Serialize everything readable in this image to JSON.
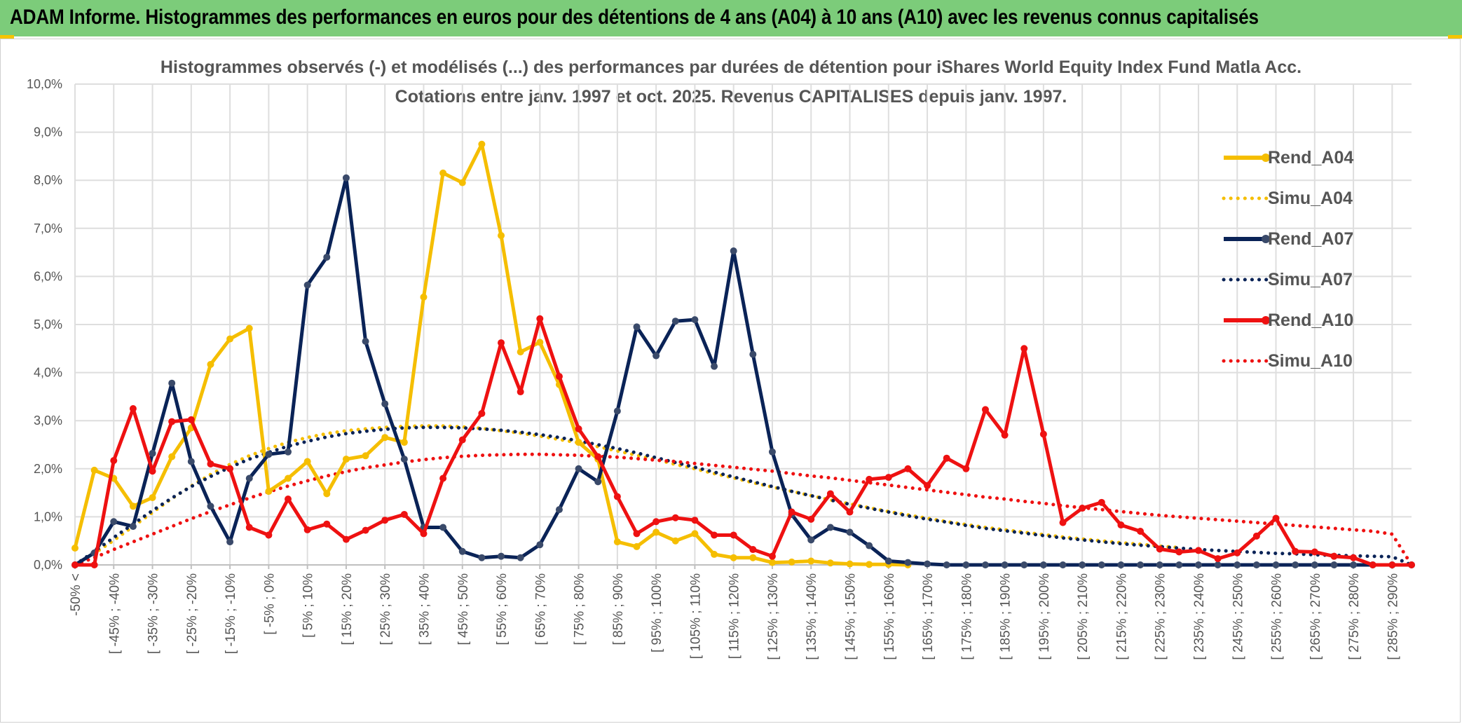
{
  "header": {
    "title": "ADAM Informe. Histogrammes des performances en euros pour des détentions de 4 ans (A04) à 10 ans (A10) avec les revenus connus capitalisés"
  },
  "chart_data": {
    "type": "line",
    "title": "Histogrammes observés (-) et modélisés (...) des performances par durées de détention pour iShares World Equity Index Fund Matla Acc.",
    "subtitle": "Cotations entre janv. 1997 et oct. 2025. Revenus CAPITALISES depuis janv. 1997.",
    "xlabel": "",
    "ylabel": "",
    "ylim": [
      0,
      10
    ],
    "y_unit": "%",
    "y_ticks": [
      "0,0%",
      "1,0%",
      "2,0%",
      "3,0%",
      "4,0%",
      "5,0%",
      "6,0%",
      "7,0%",
      "8,0%",
      "9,0%",
      "10,0%"
    ],
    "grid": true,
    "legend_position": "top-right",
    "x_tick_labels": [
      "-50% <",
      "[ -45% ; -40%",
      "[ -35% ; -30%",
      "[ -25% ; -20%",
      "[ -15% ; -10%",
      "[ -5% ; 0%",
      "[ 5% ; 10%",
      "[ 15% ; 20%",
      "[ 25% ; 30%",
      "[ 35% ; 40%",
      "[ 45% ; 50%",
      "[ 55% ; 60%",
      "[ 65% ; 70%",
      "[ 75% ; 80%",
      "[ 85% ; 90%",
      "[ 95% ; 100%",
      "[ 105% ; 110%",
      "[ 115% ; 120%",
      "[ 125% ; 130%",
      "[ 135% ; 140%",
      "[ 145% ; 150%",
      "[ 155% ; 160%",
      "[ 165% ; 170%",
      "[ 175% ; 180%",
      "[ 185% ; 190%",
      "[ 195% ; 200%",
      "[ 205% ; 210%",
      "[ 215% ; 220%",
      "[ 225% ; 230%",
      "[ 235% ; 240%",
      "[ 245% ; 250%",
      "[ 255% ; 260%",
      "[ 265% ; 270%",
      "[ 275% ; 280%",
      "[ 285% ; 290%"
    ],
    "categories_count": 70,
    "series": [
      {
        "name": "Rend_A04",
        "color": "#F5BE00",
        "style": "solid",
        "markers": true,
        "values": [
          0.35,
          1.97,
          1.8,
          1.22,
          1.4,
          2.25,
          2.85,
          4.17,
          4.7,
          4.92,
          1.53,
          1.8,
          2.15,
          1.48,
          2.2,
          2.27,
          2.65,
          2.55,
          5.57,
          8.15,
          7.95,
          8.75,
          6.85,
          4.43,
          4.63,
          3.75,
          2.55,
          2.2,
          0.48,
          0.38,
          0.68,
          0.5,
          0.65,
          0.22,
          0.15,
          0.15,
          0.05,
          0.06,
          0.08,
          0.04,
          0.02,
          0.01,
          0.01,
          0.0
        ]
      },
      {
        "name": "Simu_A04",
        "color": "#F5BE00",
        "style": "dotted",
        "markers": false,
        "values": [
          0.0,
          0.24,
          0.51,
          0.8,
          1.09,
          1.38,
          1.64,
          1.88,
          2.09,
          2.27,
          2.42,
          2.55,
          2.65,
          2.73,
          2.79,
          2.83,
          2.86,
          2.88,
          2.89,
          2.89,
          2.87,
          2.84,
          2.79,
          2.74,
          2.68,
          2.61,
          2.54,
          2.46,
          2.37,
          2.28,
          2.19,
          2.09,
          2.0,
          1.9,
          1.81,
          1.71,
          1.62,
          1.53,
          1.44,
          1.35,
          1.27,
          1.19,
          1.11,
          1.04,
          0.97,
          0.9,
          0.84,
          0.78,
          0.73,
          0.68,
          0.63,
          0.58,
          0.54,
          0.5,
          0.46,
          0.43,
          0.39,
          0.36
        ]
      },
      {
        "name": "Rend_A07",
        "color": "#0A2357",
        "style": "solid",
        "markers": true,
        "values": [
          0.0,
          0.25,
          0.9,
          0.8,
          2.32,
          3.78,
          2.15,
          1.22,
          0.48,
          1.8,
          2.3,
          2.35,
          5.82,
          6.4,
          8.05,
          4.65,
          3.35,
          2.2,
          0.78,
          0.78,
          0.28,
          0.15,
          0.18,
          0.15,
          0.42,
          1.15,
          2.0,
          1.73,
          3.2,
          4.95,
          4.35,
          5.07,
          5.1,
          4.13,
          6.53,
          4.38,
          2.35,
          1.05,
          0.52,
          0.78,
          0.68,
          0.4,
          0.08,
          0.05,
          0.02,
          0.0,
          0.0,
          0.0,
          0.0,
          0.0,
          0.0,
          0.0,
          0.0,
          0.0,
          0.0,
          0.0,
          0.0,
          0.0,
          0.0,
          0.0,
          0.0,
          0.0,
          0.0,
          0.0,
          0.0,
          0.0,
          0.0,
          0.0,
          0.0,
          0.0
        ]
      },
      {
        "name": "Simu_A07",
        "color": "#0A2357",
        "style": "dotted",
        "markers": false,
        "values": [
          0.0,
          0.28,
          0.57,
          0.85,
          1.13,
          1.39,
          1.63,
          1.84,
          2.03,
          2.2,
          2.34,
          2.47,
          2.57,
          2.66,
          2.73,
          2.78,
          2.82,
          2.85,
          2.86,
          2.86,
          2.85,
          2.83,
          2.8,
          2.76,
          2.71,
          2.65,
          2.58,
          2.5,
          2.42,
          2.33,
          2.23,
          2.13,
          2.03,
          1.93,
          1.83,
          1.73,
          1.63,
          1.53,
          1.44,
          1.35,
          1.26,
          1.18,
          1.1,
          1.02,
          0.95,
          0.89,
          0.82,
          0.76,
          0.71,
          0.66,
          0.61,
          0.56,
          0.52,
          0.48,
          0.44,
          0.41,
          0.38,
          0.35,
          0.32,
          0.3,
          0.28,
          0.26,
          0.24,
          0.23,
          0.21,
          0.2,
          0.19,
          0.18,
          0.17,
          0.0
        ]
      },
      {
        "name": "Rend_A10",
        "color": "#EE1111",
        "style": "solid",
        "markers": true,
        "values": [
          0.0,
          0.0,
          2.17,
          3.25,
          1.95,
          2.98,
          3.02,
          2.1,
          2.0,
          0.78,
          0.62,
          1.37,
          0.73,
          0.85,
          0.53,
          0.72,
          0.93,
          1.05,
          0.65,
          1.8,
          2.6,
          3.15,
          4.62,
          3.6,
          5.12,
          3.92,
          2.83,
          2.25,
          1.42,
          0.65,
          0.9,
          0.98,
          0.93,
          0.62,
          0.62,
          0.32,
          0.18,
          1.1,
          0.95,
          1.48,
          1.1,
          1.78,
          1.82,
          2.0,
          1.65,
          2.22,
          2.0,
          3.23,
          2.7,
          4.5,
          2.72,
          0.88,
          1.18,
          1.3,
          0.83,
          0.7,
          0.33,
          0.27,
          0.3,
          0.13,
          0.25,
          0.6,
          0.97,
          0.28,
          0.27,
          0.18,
          0.15,
          0.0,
          0.0,
          0.0
        ]
      },
      {
        "name": "Simu_A10",
        "color": "#EE1111",
        "style": "dotted",
        "markers": false,
        "values": [
          0.0,
          0.15,
          0.32,
          0.48,
          0.64,
          0.8,
          0.96,
          1.11,
          1.25,
          1.39,
          1.52,
          1.64,
          1.75,
          1.85,
          1.94,
          2.02,
          2.08,
          2.14,
          2.19,
          2.23,
          2.26,
          2.28,
          2.29,
          2.3,
          2.3,
          2.29,
          2.28,
          2.26,
          2.24,
          2.21,
          2.18,
          2.15,
          2.11,
          2.07,
          2.03,
          1.99,
          1.95,
          1.9,
          1.85,
          1.81,
          1.76,
          1.71,
          1.66,
          1.61,
          1.56,
          1.51,
          1.46,
          1.41,
          1.37,
          1.32,
          1.28,
          1.23,
          1.19,
          1.15,
          1.11,
          1.07,
          1.03,
          1.0,
          0.97,
          0.94,
          0.91,
          0.88,
          0.85,
          0.82,
          0.79,
          0.76,
          0.73,
          0.7,
          0.64,
          0.0
        ]
      }
    ]
  }
}
